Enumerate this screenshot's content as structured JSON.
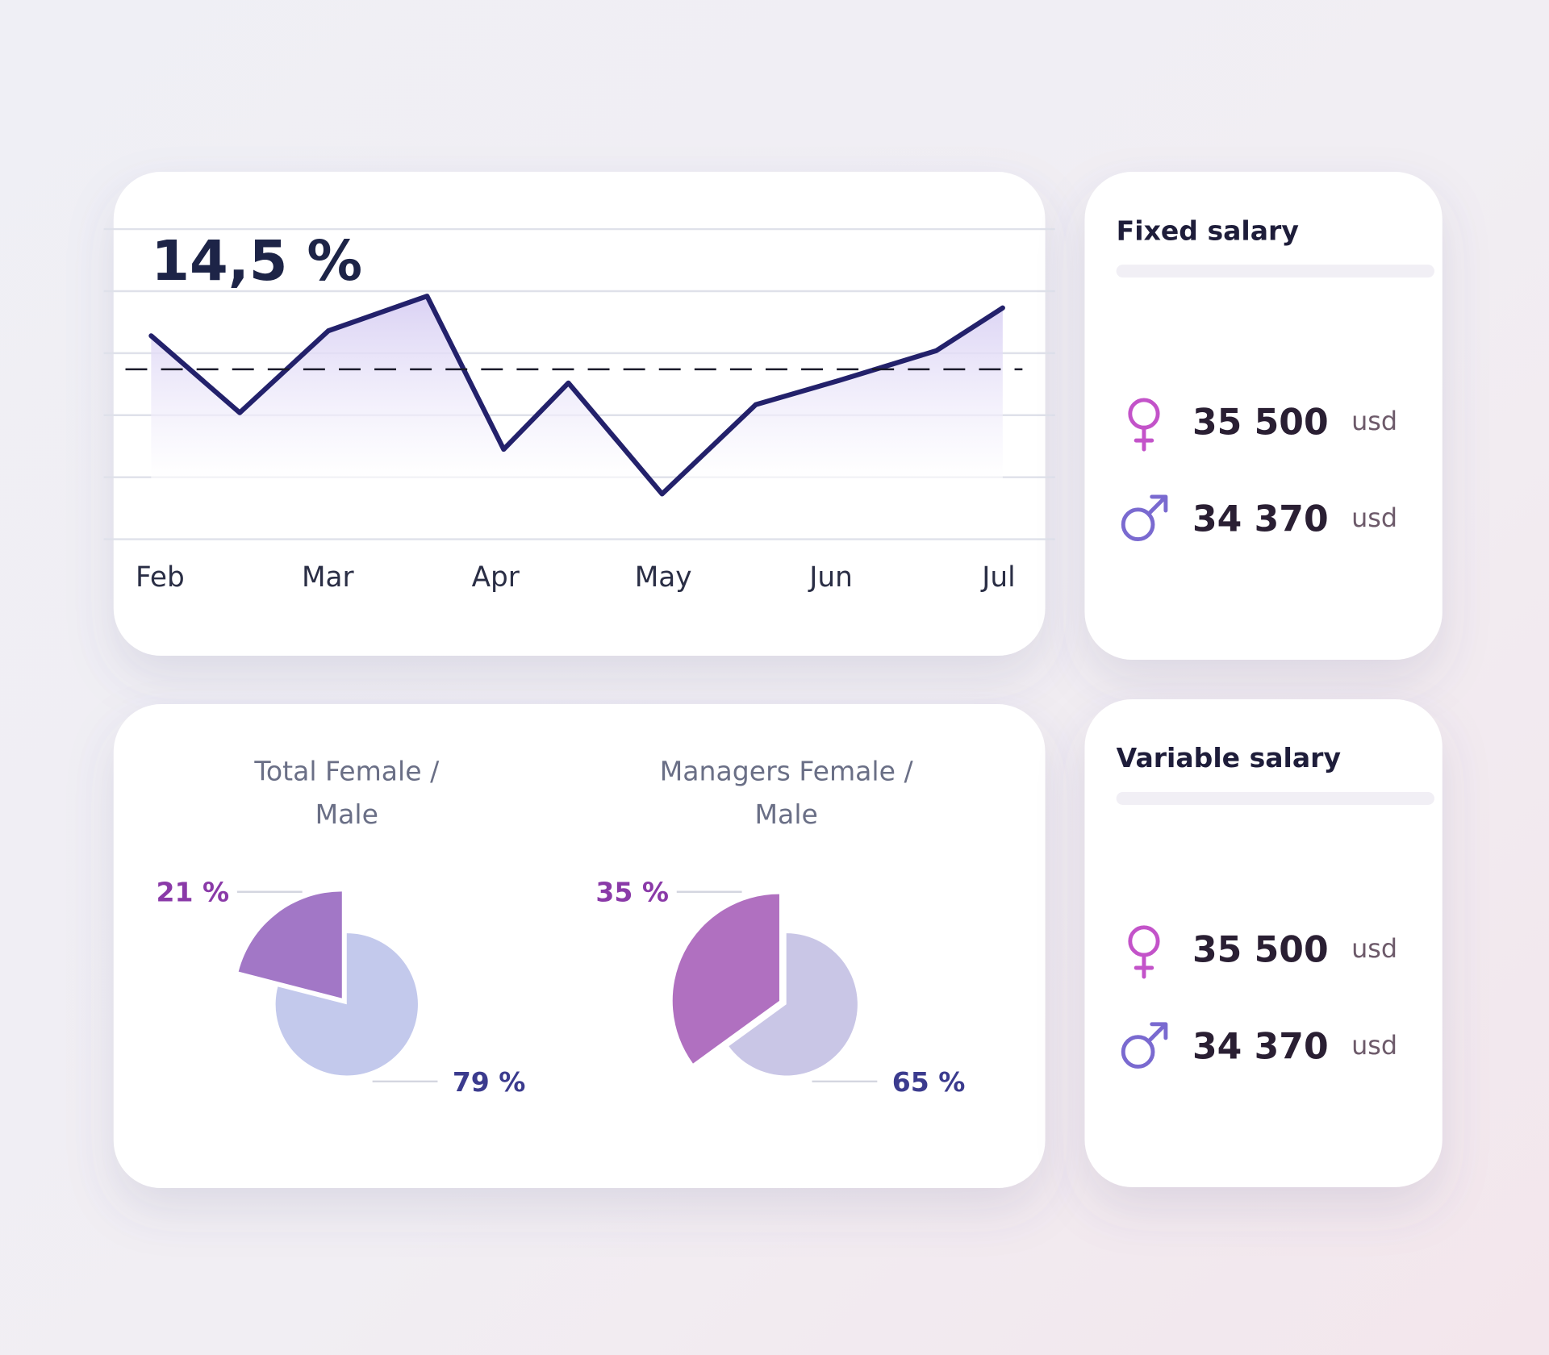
{
  "chart_data": [
    {
      "type": "line",
      "title": "14,5 %",
      "x": [
        0,
        0.52,
        1.04,
        1.62,
        2.07,
        2.45,
        3.0,
        3.55,
        4.04,
        4.61,
        5
      ],
      "series": [
        {
          "color": "#23216b",
          "values": [
            3.28,
            2.04,
            3.36,
            3.92,
            1.45,
            2.52,
            0.73,
            2.17,
            2.56,
            3.04,
            3.73
          ]
        }
      ],
      "xlim": [
        0,
        5
      ],
      "xticks": [
        {
          "value": 0,
          "label": "Feb"
        },
        {
          "value": 1,
          "label": "Mar"
        },
        {
          "value": 2,
          "label": "Apr"
        },
        {
          "value": 3,
          "label": "May"
        },
        {
          "value": 4,
          "label": "Jun"
        },
        {
          "value": 5,
          "label": "Jul"
        }
      ],
      "ylim": [
        0,
        5
      ],
      "yticks": [
        0,
        1,
        2,
        3,
        4,
        5
      ],
      "grid": true,
      "reference_line": 2.74
    },
    {
      "type": "pie",
      "title": "Total Female / Male",
      "values": [
        21,
        79
      ],
      "value_labels": [
        "21 %",
        "79 %"
      ],
      "colors": [
        "#a277c6",
        "#c3c9ec"
      ],
      "label_colors": [
        "#8a3aa8",
        "#3b3b8e"
      ],
      "explode": [
        true,
        false
      ]
    },
    {
      "type": "pie",
      "title": "Managers Female / Male",
      "values": [
        35,
        65
      ],
      "value_labels": [
        "35 %",
        "65 %"
      ],
      "colors": [
        "#b070c0",
        "#c9c6e6"
      ],
      "label_colors": [
        "#8a3aa8",
        "#3b3b8e"
      ],
      "explode": [
        true,
        false
      ]
    }
  ],
  "salary_cards": [
    {
      "title": "Fixed salary",
      "rows": [
        {
          "value": "35 500",
          "unit": "usd"
        },
        {
          "value": "34 370",
          "unit": "usd"
        }
      ]
    },
    {
      "title": "Variable salary",
      "rows": [
        {
          "value": "35 500",
          "unit": "usd"
        },
        {
          "value": "34 370",
          "unit": "usd"
        }
      ]
    }
  ]
}
